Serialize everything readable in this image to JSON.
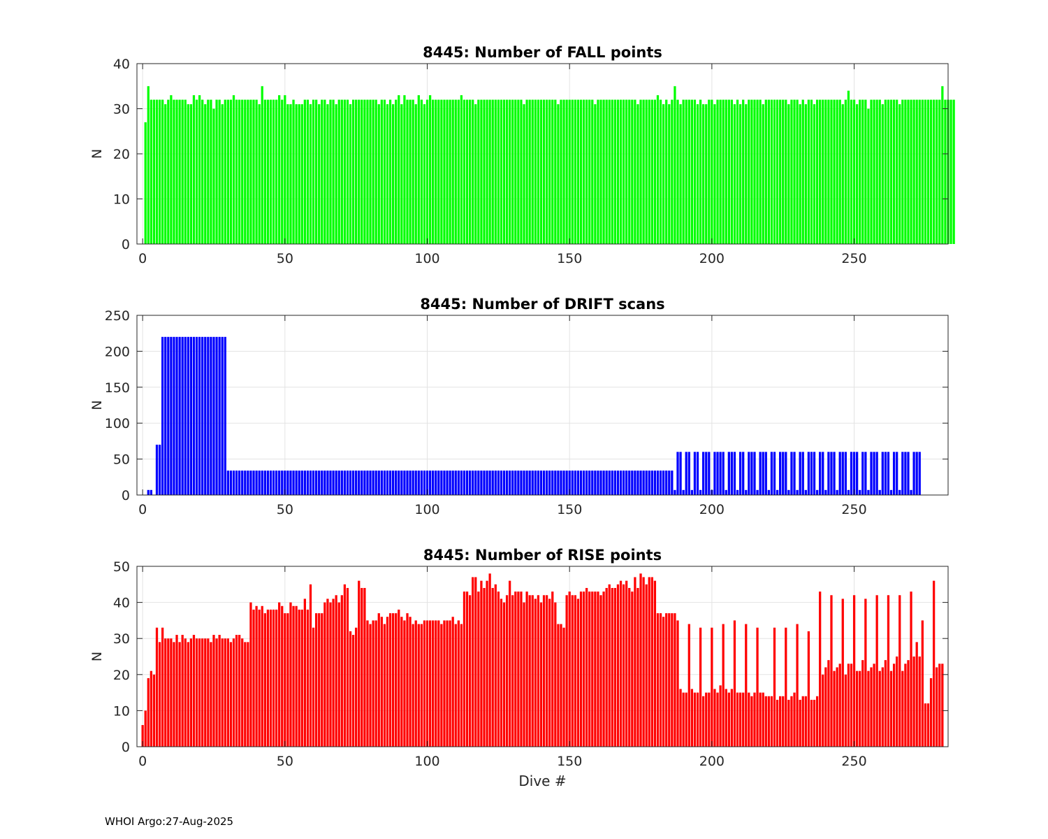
{
  "footer": "WHOI Argo:27-Aug-2025",
  "chart_data": [
    {
      "type": "bar",
      "title": "8445: Number of FALL points",
      "xlabel": "",
      "ylabel": "N",
      "color": "#00ff00",
      "xlim": [
        -2,
        283
      ],
      "ylim": [
        0,
        40
      ],
      "xticks": [
        0,
        50,
        100,
        150,
        200,
        250
      ],
      "yticks": [
        0,
        10,
        20,
        30,
        40
      ],
      "grid": true,
      "x_start": 1,
      "values": [
        27,
        35,
        32,
        32,
        32,
        32,
        32,
        31,
        32,
        33,
        32,
        32,
        32,
        32,
        32,
        31,
        31,
        33,
        32,
        33,
        32,
        31,
        32,
        32,
        30,
        32,
        32,
        31,
        32,
        32,
        32,
        33,
        32,
        32,
        32,
        32,
        32,
        32,
        32,
        32,
        31,
        35,
        32,
        32,
        32,
        32,
        32,
        33,
        32,
        33,
        31,
        31,
        32,
        31,
        31,
        31,
        32,
        32,
        31,
        32,
        32,
        31,
        32,
        32,
        31,
        32,
        32,
        31,
        32,
        32,
        32,
        32,
        31,
        32,
        32,
        32,
        32,
        32,
        32,
        32,
        32,
        32,
        31,
        32,
        32,
        31,
        32,
        31,
        32,
        33,
        31,
        33,
        32,
        32,
        32,
        31,
        33,
        32,
        31,
        32,
        33,
        32,
        32,
        32,
        32,
        32,
        32,
        32,
        32,
        32,
        32,
        33,
        32,
        32,
        32,
        32,
        31,
        32,
        32,
        32,
        32,
        32,
        32,
        32,
        32,
        32,
        32,
        32,
        32,
        32,
        32,
        32,
        32,
        31,
        32,
        32,
        32,
        32,
        32,
        32,
        32,
        32,
        32,
        32,
        32,
        31,
        32,
        32,
        32,
        32,
        32,
        32,
        32,
        32,
        32,
        32,
        32,
        32,
        31,
        32,
        32,
        32,
        32,
        32,
        32,
        32,
        32,
        32,
        32,
        32,
        32,
        32,
        32,
        31,
        32,
        32,
        32,
        32,
        32,
        32,
        33,
        32,
        31,
        32,
        31,
        32,
        35,
        32,
        31,
        32,
        32,
        32,
        32,
        32,
        31,
        32,
        31,
        31,
        32,
        32,
        31,
        32,
        32,
        32,
        32,
        32,
        32,
        31,
        32,
        31,
        32,
        31,
        32,
        32,
        32,
        32,
        32,
        31,
        32,
        32,
        32,
        32,
        32,
        32,
        32,
        32,
        31,
        32,
        32,
        32,
        31,
        32,
        31,
        32,
        32,
        31,
        32,
        32,
        32,
        32,
        32,
        32,
        32,
        32,
        32,
        31,
        32,
        34,
        32,
        32,
        31,
        32,
        32,
        32,
        30,
        32,
        32,
        32,
        32,
        31,
        32,
        32,
        32,
        32,
        32,
        31,
        32,
        32,
        32,
        32,
        32,
        32,
        32,
        32,
        32,
        32,
        32,
        32,
        32,
        32,
        35,
        32,
        32,
        32,
        32
      ]
    },
    {
      "type": "bar",
      "title": "8445: Number of DRIFT scans",
      "xlabel": "",
      "ylabel": "N",
      "color": "#0000ff",
      "xlim": [
        -2,
        283
      ],
      "ylim": [
        0,
        250
      ],
      "xticks": [
        0,
        50,
        100,
        150,
        200,
        250
      ],
      "yticks": [
        0,
        50,
        100,
        150,
        200,
        250
      ],
      "grid": true,
      "x_start": 1,
      "values": [
        0,
        7,
        7,
        0,
        70,
        70,
        220,
        220,
        220,
        220,
        220,
        220,
        220,
        220,
        220,
        220,
        220,
        220,
        220,
        220,
        220,
        220,
        220,
        220,
        220,
        220,
        220,
        220,
        220,
        34,
        34,
        34,
        34,
        34,
        34,
        34,
        34,
        34,
        34,
        34,
        34,
        34,
        34,
        34,
        34,
        34,
        34,
        34,
        34,
        34,
        34,
        34,
        34,
        34,
        34,
        34,
        34,
        34,
        34,
        34,
        34,
        34,
        34,
        34,
        34,
        34,
        34,
        34,
        34,
        34,
        34,
        34,
        34,
        34,
        34,
        34,
        34,
        34,
        34,
        34,
        34,
        34,
        34,
        34,
        34,
        34,
        34,
        34,
        34,
        34,
        34,
        34,
        34,
        34,
        34,
        34,
        34,
        34,
        34,
        34,
        34,
        34,
        34,
        34,
        34,
        34,
        34,
        34,
        34,
        34,
        34,
        34,
        34,
        34,
        34,
        34,
        34,
        34,
        34,
        34,
        34,
        34,
        34,
        34,
        34,
        34,
        34,
        34,
        34,
        34,
        34,
        34,
        34,
        34,
        34,
        34,
        34,
        34,
        34,
        34,
        34,
        34,
        34,
        34,
        34,
        34,
        34,
        34,
        34,
        34,
        34,
        34,
        34,
        34,
        34,
        34,
        34,
        34,
        34,
        34,
        34,
        34,
        34,
        34,
        34,
        34,
        34,
        34,
        34,
        34,
        34,
        34,
        34,
        34,
        34,
        34,
        34,
        34,
        34,
        34,
        34,
        34,
        34,
        34,
        34,
        34,
        7,
        60,
        60,
        7,
        60,
        60,
        7,
        60,
        60,
        7,
        60,
        60,
        60,
        7,
        60,
        60,
        60,
        60,
        7,
        60,
        60,
        60,
        7,
        60,
        60,
        7,
        60,
        60,
        60,
        7,
        60,
        60,
        60,
        7,
        60,
        60,
        7,
        60,
        60,
        60,
        7,
        60,
        60,
        7,
        60,
        60,
        7,
        60,
        60,
        60,
        7,
        60,
        60,
        7,
        60,
        60,
        60,
        7,
        60,
        60,
        60,
        7,
        60,
        60,
        60,
        7,
        60,
        60,
        7,
        60,
        60,
        60,
        7,
        60,
        60,
        60,
        7,
        60,
        60,
        7,
        60,
        60,
        60,
        7,
        60,
        60,
        60
      ]
    },
    {
      "type": "bar",
      "title": "8445: Number of RISE points",
      "xlabel": "Dive #",
      "ylabel": "N",
      "color": "#ff0000",
      "xlim": [
        -2,
        283
      ],
      "ylim": [
        0,
        50
      ],
      "xticks": [
        0,
        50,
        100,
        150,
        200,
        250
      ],
      "yticks": [
        0,
        10,
        20,
        30,
        40,
        50
      ],
      "grid": true,
      "x_start": 0,
      "values": [
        6,
        10,
        19,
        21,
        20,
        33,
        29,
        33,
        30,
        30,
        30,
        29,
        31,
        29,
        31,
        30,
        29,
        30,
        31,
        30,
        30,
        30,
        30,
        30,
        29,
        31,
        30,
        31,
        30,
        30,
        30,
        29,
        30,
        31,
        31,
        30,
        29,
        29,
        40,
        38,
        39,
        38,
        39,
        37,
        38,
        38,
        38,
        38,
        40,
        39,
        37,
        37,
        40,
        39,
        39,
        38,
        38,
        41,
        38,
        45,
        33,
        37,
        37,
        37,
        40,
        41,
        40,
        41,
        42,
        40,
        42,
        45,
        44,
        32,
        31,
        33,
        46,
        44,
        44,
        35,
        34,
        35,
        35,
        37,
        36,
        34,
        36,
        37,
        37,
        37,
        38,
        36,
        35,
        37,
        36,
        34,
        35,
        34,
        34,
        35,
        35,
        35,
        35,
        35,
        35,
        34,
        35,
        35,
        35,
        36,
        34,
        35,
        34,
        43,
        43,
        42,
        47,
        47,
        43,
        46,
        44,
        46,
        48,
        44,
        45,
        43,
        41,
        40,
        42,
        46,
        42,
        43,
        43,
        43,
        40,
        43,
        42,
        42,
        41,
        42,
        40,
        42,
        42,
        41,
        43,
        40,
        34,
        34,
        33,
        42,
        43,
        42,
        42,
        41,
        43,
        43,
        44,
        43,
        43,
        43,
        43,
        42,
        43,
        44,
        45,
        44,
        44,
        45,
        46,
        45,
        46,
        44,
        43,
        47,
        44,
        48,
        47,
        45,
        47,
        47,
        46,
        37,
        37,
        36,
        37,
        37,
        37,
        37,
        35,
        16,
        15,
        15,
        34,
        16,
        15,
        15,
        33,
        14,
        15,
        15,
        33,
        16,
        15,
        17,
        34,
        16,
        15,
        16,
        35,
        15,
        15,
        15,
        34,
        15,
        14,
        15,
        33,
        15,
        15,
        14,
        14,
        14,
        33,
        13,
        14,
        14,
        33,
        13,
        14,
        15,
        34,
        13,
        14,
        14,
        32,
        13,
        13,
        14,
        43,
        20,
        22,
        24,
        42,
        21,
        22,
        23,
        41,
        20,
        23,
        23,
        42,
        21,
        21,
        24,
        41,
        21,
        22,
        23,
        42,
        21,
        22,
        24,
        42,
        21,
        23,
        25,
        42,
        21,
        23,
        24,
        43,
        25,
        29,
        25,
        35,
        12,
        12,
        19,
        46,
        22,
        23,
        23
      ]
    }
  ]
}
